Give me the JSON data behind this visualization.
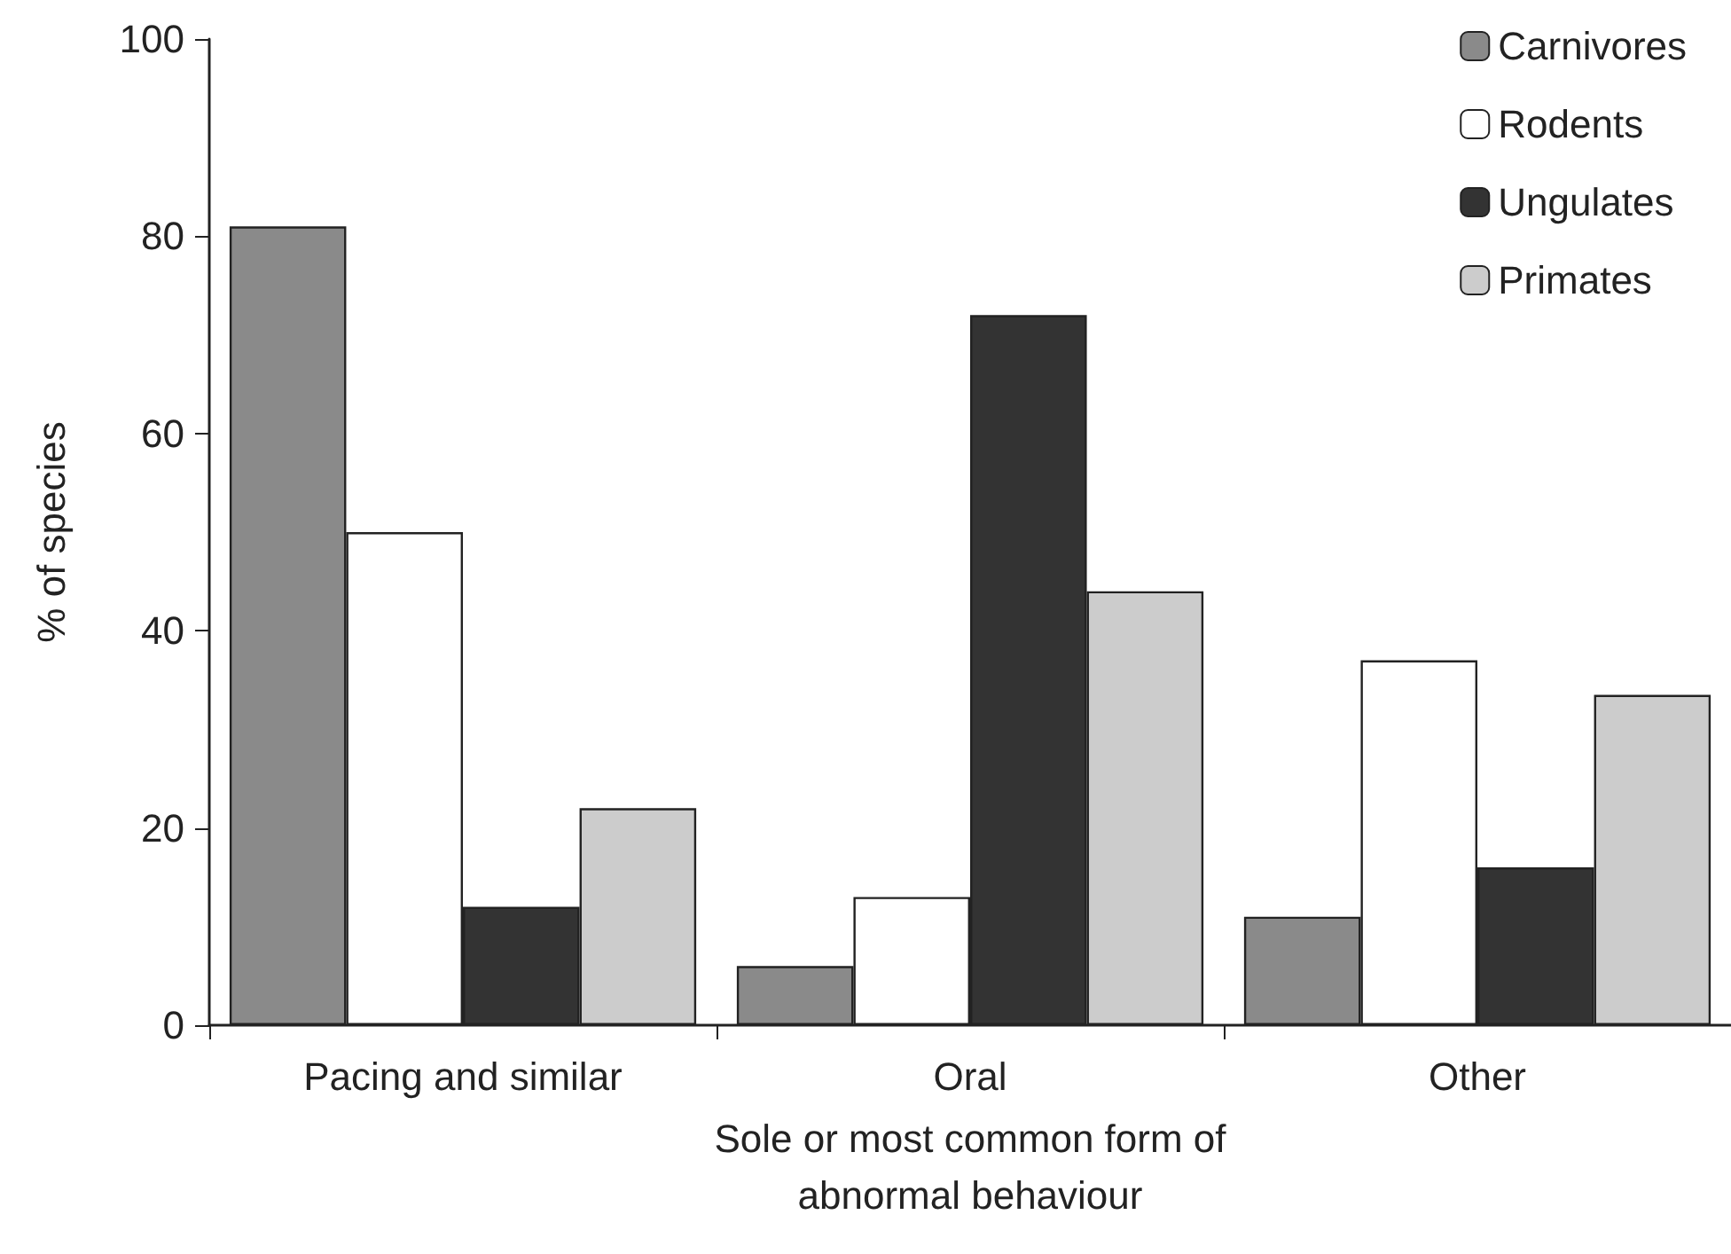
{
  "chart_data": {
    "type": "bar",
    "xlabel": "Sole or most common form of\nabnormal behaviour",
    "ylabel": "% of species",
    "categories": [
      "Pacing and similar",
      "Oral",
      "Other"
    ],
    "series": [
      {
        "name": "Carnivores",
        "color": "#8a8a8a",
        "values": [
          81,
          6,
          11
        ]
      },
      {
        "name": "Rodents",
        "color": "#ffffff",
        "values": [
          50,
          13,
          37
        ]
      },
      {
        "name": "Ungulates",
        "color": "#333333",
        "values": [
          12,
          72,
          16
        ]
      },
      {
        "name": "Primates",
        "color": "#cccccc",
        "values": [
          22,
          44,
          33.5
        ]
      }
    ],
    "ylim": [
      0,
      100
    ],
    "yticks": [
      0,
      20,
      40,
      60,
      80,
      100
    ],
    "grid": false,
    "legend": "top right"
  }
}
